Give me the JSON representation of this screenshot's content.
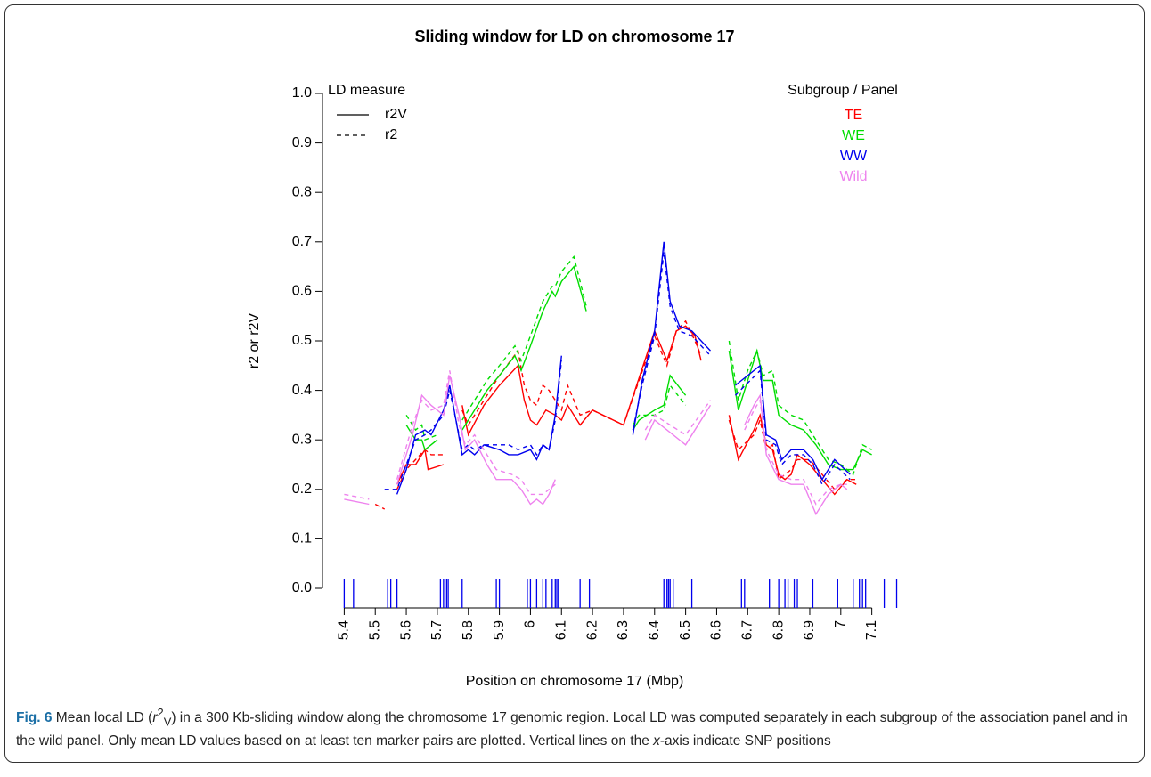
{
  "chart_data": {
    "type": "line",
    "title": "Sliding window for LD on chromosome 17",
    "x_label": "Position on chromosome 17 (Mbp)",
    "y_label": "r2 or r2V",
    "xlim": [
      5.33,
      7.19
    ],
    "ylim": [
      0,
      1
    ],
    "xticks": [
      5.4,
      5.5,
      5.6,
      5.7,
      5.8,
      5.9,
      6,
      6.1,
      6.2,
      6.3,
      6.4,
      6.5,
      6.6,
      6.7,
      6.8,
      6.9,
      7,
      7.1
    ],
    "yticks": [
      {
        "value": 0,
        "label": "0.0"
      },
      {
        "value": 0.1,
        "label": "0.1"
      },
      {
        "value": 0.2,
        "label": "0.2"
      },
      {
        "value": 0.3,
        "label": "0.3"
      },
      {
        "value": 0.4,
        "label": "0.4"
      },
      {
        "value": 0.5,
        "label": "0.5"
      },
      {
        "value": 0.6,
        "label": "0.6"
      },
      {
        "value": 0.7,
        "label": "0.7"
      },
      {
        "value": 0.8,
        "label": "0.8"
      },
      {
        "value": 0.9,
        "label": "0.9"
      },
      {
        "value": 1,
        "label": "1.0"
      }
    ],
    "measure_title": "LD measure",
    "measures": [
      {
        "name": "r2V",
        "dash": "solid"
      },
      {
        "name": "r2",
        "dash": "dashed"
      }
    ],
    "legend_title": "Subgroup / Panel",
    "series": [
      {
        "name": "TE",
        "color": "#ff0000",
        "lines": [
          {
            "x": [
              5.57,
              5.6,
              5.63,
              5.66,
              5.67,
              5.72,
              null,
              5.78,
              5.8,
              5.85,
              5.9,
              5.96,
              5.98,
              6.0,
              6.02,
              6.05,
              6.08,
              6.1,
              6.12,
              6.16,
              6.2,
              6.3,
              6.4,
              6.44,
              6.47,
              6.5,
              6.53,
              6.55,
              null,
              6.64,
              6.67,
              6.72,
              6.74,
              6.76,
              6.78,
              6.8,
              6.82,
              6.84,
              6.86,
              6.9,
              6.94,
              6.98,
              7.02,
              7.05
            ],
            "values": [
              0.21,
              0.25,
              0.25,
              0.28,
              0.24,
              0.25,
              null,
              0.37,
              0.31,
              0.37,
              0.41,
              0.45,
              0.38,
              0.34,
              0.33,
              0.36,
              0.35,
              0.34,
              0.37,
              0.33,
              0.36,
              0.33,
              0.52,
              0.46,
              0.52,
              0.53,
              0.51,
              0.46,
              null,
              0.35,
              0.26,
              0.32,
              0.35,
              0.29,
              0.28,
              0.23,
              0.22,
              0.23,
              0.27,
              0.25,
              0.22,
              0.19,
              0.22,
              0.21
            ]
          },
          {
            "x": [
              5.5,
              5.53,
              null,
              5.57,
              5.6,
              5.63,
              5.66,
              5.68,
              5.72,
              null,
              5.78,
              5.8,
              5.85,
              5.9,
              5.96,
              5.98,
              6.0,
              6.02,
              6.04,
              6.06,
              6.08,
              6.1,
              6.12,
              6.14,
              6.16,
              6.2,
              6.3,
              6.4,
              6.44,
              6.47,
              6.5,
              6.53,
              6.55,
              null,
              6.64,
              6.67,
              6.72,
              6.74,
              6.76,
              6.78,
              6.8,
              6.82,
              6.84,
              6.86,
              6.9,
              6.94,
              6.98,
              7.02,
              7.05
            ],
            "values": [
              0.17,
              0.16,
              null,
              0.2,
              0.24,
              0.26,
              0.28,
              0.27,
              0.27,
              null,
              0.36,
              0.33,
              0.38,
              0.43,
              0.48,
              0.41,
              0.38,
              0.37,
              0.41,
              0.4,
              0.38,
              0.36,
              0.41,
              0.38,
              0.35,
              0.36,
              0.33,
              0.51,
              0.45,
              0.52,
              0.54,
              0.5,
              0.47,
              null,
              0.34,
              0.28,
              0.31,
              0.34,
              0.28,
              0.29,
              0.22,
              0.23,
              0.24,
              0.26,
              0.26,
              0.23,
              0.2,
              0.22,
              0.22
            ]
          }
        ]
      },
      {
        "name": "WE",
        "color": "#00dd00",
        "lines": [
          {
            "x": [
              5.6,
              5.63,
              5.65,
              5.66,
              5.7,
              null,
              5.78,
              5.82,
              5.86,
              5.9,
              5.95,
              5.97,
              6.0,
              6.04,
              6.07,
              6.08,
              6.1,
              6.14,
              6.18,
              null,
              6.33,
              6.35,
              6.4,
              6.43,
              6.45,
              6.5,
              null,
              6.64,
              6.67,
              6.7,
              6.73,
              6.75,
              6.78,
              6.8,
              6.84,
              6.88,
              6.92,
              6.96,
              7.0,
              7.04,
              7.07,
              7.1
            ],
            "values": [
              0.33,
              0.3,
              0.3,
              0.28,
              0.3,
              null,
              0.32,
              0.36,
              0.4,
              0.43,
              0.47,
              0.44,
              0.49,
              0.56,
              0.6,
              0.59,
              0.62,
              0.65,
              0.56,
              null,
              0.32,
              0.34,
              0.36,
              0.37,
              0.43,
              0.39,
              null,
              0.48,
              0.36,
              0.42,
              0.48,
              0.42,
              0.42,
              0.35,
              0.33,
              0.32,
              0.29,
              0.25,
              0.24,
              0.24,
              0.28,
              0.27
            ]
          },
          {
            "x": [
              5.6,
              5.63,
              5.65,
              5.66,
              5.7,
              null,
              5.78,
              5.82,
              5.86,
              5.9,
              5.95,
              5.97,
              6.0,
              6.04,
              6.07,
              6.08,
              6.1,
              6.14,
              6.18,
              null,
              6.33,
              6.35,
              6.4,
              6.43,
              6.45,
              6.5,
              null,
              6.64,
              6.67,
              6.7,
              6.73,
              6.75,
              6.78,
              6.8,
              6.84,
              6.88,
              6.92,
              6.96,
              7.0,
              7.04,
              7.07,
              7.1
            ],
            "values": [
              0.35,
              0.32,
              0.33,
              0.3,
              0.31,
              null,
              0.34,
              0.38,
              0.42,
              0.45,
              0.49,
              0.46,
              0.51,
              0.58,
              0.61,
              0.61,
              0.64,
              0.67,
              0.57,
              null,
              0.33,
              0.35,
              0.35,
              0.36,
              0.41,
              0.37,
              null,
              0.5,
              0.38,
              0.44,
              0.48,
              0.43,
              0.44,
              0.37,
              0.35,
              0.34,
              0.3,
              0.26,
              0.25,
              0.23,
              0.29,
              0.28
            ]
          }
        ]
      },
      {
        "name": "WW",
        "color": "#0000ee",
        "lines": [
          {
            "x": [
              5.57,
              5.6,
              5.63,
              5.66,
              5.68,
              5.72,
              5.74,
              5.78,
              5.8,
              5.82,
              5.85,
              5.9,
              5.93,
              5.96,
              6.0,
              6.02,
              6.04,
              6.06,
              6.08,
              6.1,
              null,
              6.33,
              6.36,
              6.4,
              6.43,
              6.45,
              6.48,
              6.52,
              6.58,
              null,
              6.66,
              6.74,
              6.76,
              6.79,
              6.81,
              6.84,
              6.88,
              6.91,
              6.94,
              6.98,
              7.03
            ],
            "values": [
              0.19,
              0.24,
              0.31,
              0.32,
              0.31,
              0.36,
              0.41,
              0.27,
              0.28,
              0.27,
              0.29,
              0.28,
              0.27,
              0.27,
              0.28,
              0.26,
              0.29,
              0.28,
              0.35,
              0.47,
              null,
              0.31,
              0.42,
              0.52,
              0.7,
              0.58,
              0.53,
              0.52,
              0.48,
              null,
              0.41,
              0.45,
              0.31,
              0.3,
              0.26,
              0.28,
              0.28,
              0.26,
              0.22,
              0.26,
              0.23
            ]
          },
          {
            "x": [
              5.53,
              5.57,
              5.6,
              5.63,
              5.66,
              5.68,
              5.72,
              5.74,
              5.78,
              5.8,
              5.82,
              5.85,
              5.9,
              5.93,
              5.96,
              6.0,
              6.02,
              6.04,
              6.06,
              6.08,
              6.1,
              null,
              6.33,
              6.36,
              6.4,
              6.43,
              6.45,
              6.48,
              6.52,
              6.58,
              null,
              6.66,
              6.74,
              6.76,
              6.79,
              6.81,
              6.84,
              6.88,
              6.91,
              6.94,
              6.98,
              7.03
            ],
            "values": [
              0.2,
              0.2,
              0.25,
              0.3,
              0.31,
              0.32,
              0.35,
              0.4,
              0.28,
              0.29,
              0.28,
              0.29,
              0.29,
              0.29,
              0.28,
              0.29,
              0.27,
              0.29,
              0.28,
              0.34,
              0.46,
              null,
              0.32,
              0.41,
              0.51,
              0.68,
              0.57,
              0.52,
              0.51,
              0.47,
              null,
              0.39,
              0.44,
              0.3,
              0.29,
              0.25,
              0.27,
              0.27,
              0.25,
              0.21,
              0.25,
              0.22
            ]
          }
        ]
      },
      {
        "name": "Wild",
        "color": "#ee82ee",
        "lines": [
          {
            "x": [
              5.4,
              5.48,
              null,
              5.57,
              5.62,
              5.65,
              5.68,
              5.72,
              5.74,
              5.77,
              5.79,
              5.82,
              5.86,
              5.89,
              5.94,
              5.97,
              6.0,
              6.02,
              6.04,
              6.06,
              6.08,
              null,
              6.37,
              6.4,
              6.5,
              6.58,
              null,
              6.69,
              6.72,
              6.74,
              6.76,
              6.8,
              6.84,
              6.88,
              6.92,
              6.96,
              7.0,
              7.02
            ],
            "values": [
              0.18,
              0.17,
              null,
              0.21,
              0.31,
              0.39,
              0.37,
              0.35,
              0.43,
              0.35,
              0.28,
              0.3,
              0.25,
              0.22,
              0.22,
              0.2,
              0.17,
              0.18,
              0.17,
              0.19,
              0.22,
              null,
              0.3,
              0.34,
              0.29,
              0.37,
              null,
              0.33,
              0.37,
              0.39,
              0.27,
              0.22,
              0.21,
              0.21,
              0.15,
              0.19,
              0.21,
              0.2
            ]
          },
          {
            "x": [
              5.4,
              5.48,
              null,
              5.57,
              5.62,
              5.65,
              5.68,
              5.72,
              5.74,
              5.77,
              5.79,
              5.82,
              5.86,
              5.89,
              5.94,
              5.97,
              6.0,
              6.02,
              6.04,
              6.06,
              6.08,
              null,
              6.37,
              6.4,
              6.5,
              6.58,
              null,
              6.69,
              6.72,
              6.74,
              6.76,
              6.8,
              6.84,
              6.88,
              6.92,
              6.96,
              7.0,
              7.02
            ],
            "values": [
              0.19,
              0.18,
              null,
              0.22,
              0.33,
              0.38,
              0.36,
              0.37,
              0.44,
              0.33,
              0.29,
              0.31,
              0.27,
              0.24,
              0.23,
              0.22,
              0.19,
              0.19,
              0.19,
              0.2,
              0.21,
              null,
              0.32,
              0.35,
              0.31,
              0.38,
              null,
              0.32,
              0.36,
              0.38,
              0.28,
              0.23,
              0.22,
              0.22,
              0.17,
              0.2,
              0.21,
              0.21
            ]
          }
        ]
      }
    ],
    "snp_color": "#0000ee",
    "snp_positions": [
      5.4,
      5.43,
      5.54,
      5.55,
      5.57,
      5.71,
      5.72,
      5.73,
      5.735,
      5.78,
      5.89,
      5.9,
      5.99,
      6.0,
      6.02,
      6.04,
      6.05,
      6.07,
      6.08,
      6.085,
      6.09,
      6.16,
      6.19,
      6.43,
      6.44,
      6.445,
      6.45,
      6.46,
      6.52,
      6.68,
      6.69,
      6.77,
      6.8,
      6.82,
      6.83,
      6.85,
      6.86,
      6.91,
      6.99,
      7.04,
      7.06,
      7.07,
      7.08,
      7.14,
      7.18
    ]
  },
  "caption": {
    "label": "Fig. 6",
    "parts": [
      "Mean local LD (",
      "r",
      "2",
      "V",
      ") in a 300 Kb-sliding window along the chromosome 17 genomic region. Local LD was computed separately in each subgroup of the association panel and in the wild panel. Only mean LD values based on at least ten marker pairs are plotted. Vertical lines on the ",
      "x",
      "-axis indicate SNP positions"
    ]
  }
}
